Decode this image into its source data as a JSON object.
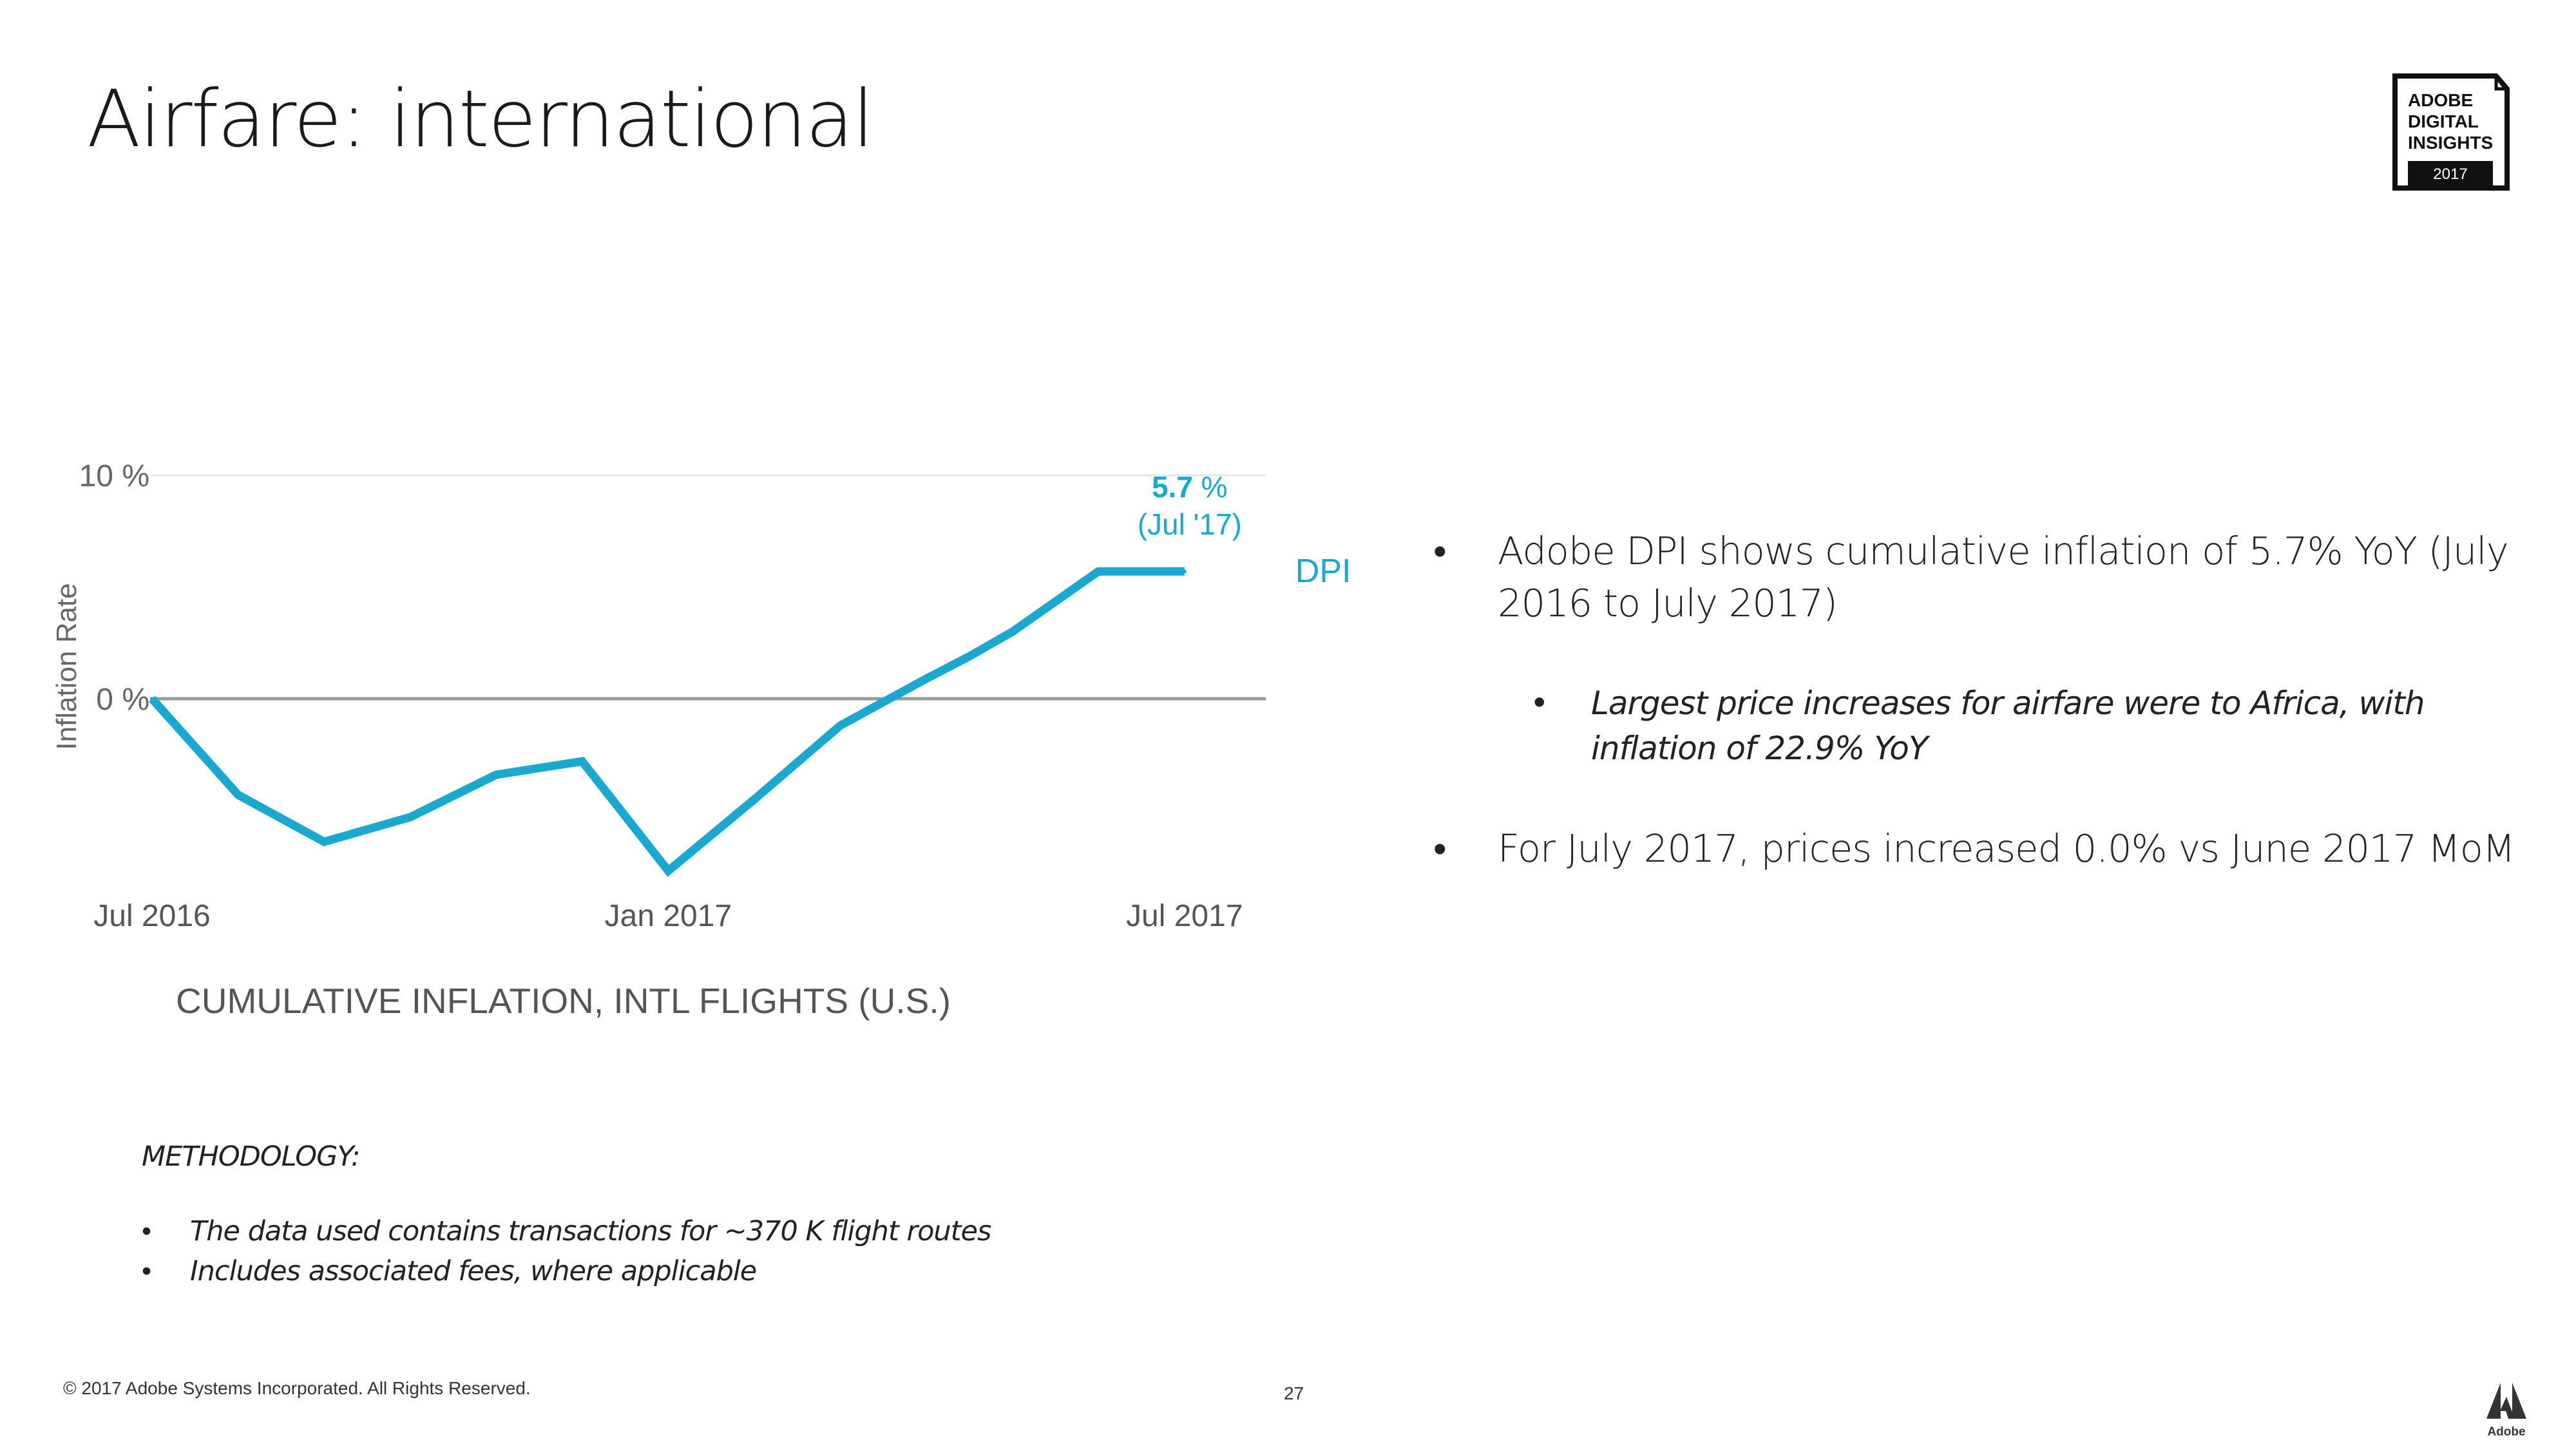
{
  "slide": {
    "title": "Airfare: international",
    "copyright": "© 2017 Adobe Systems Incorporated.  All Rights Reserved.",
    "page_number": "27"
  },
  "badge": {
    "line1": "ADOBE",
    "line2": "DIGITAL",
    "line3": "INSIGHTS",
    "year": "2017",
    "color": "#111111"
  },
  "adobe_logo": {
    "wordmark": "Adobe",
    "icon": "adobe-a-icon"
  },
  "bullets": {
    "b1": "Adobe DPI shows cumulative inflation of 5.7% YoY (July 2016 to July 2017)",
    "b1_sub": "Largest price increases for airfare were to Africa, with inflation of 22.9% YoY",
    "b2": "For July 2017, prices increased 0.0% vs June 2017 MoM",
    "bullet_char": "•"
  },
  "methodology": {
    "heading": "METHODOLOGY:",
    "items": [
      "The data used contains transactions for ~370 K flight routes",
      "Includes associated fees, where applicable"
    ]
  },
  "chart_data": {
    "type": "line",
    "title": "CUMULATIVE INFLATION, INTL FLIGHTS (U.S.)",
    "xlabel": "",
    "ylabel": "Inflation Rate",
    "ylim": [
      -10,
      10
    ],
    "y_ticks": [
      {
        "value": 10,
        "label": "10 %"
      },
      {
        "value": 0,
        "label": "0 %"
      }
    ],
    "x_ticks": [
      {
        "value": 0,
        "label": "Jul 2016"
      },
      {
        "value": 6,
        "label": "Jan 2017"
      },
      {
        "value": 12,
        "label": "Jul 2017"
      }
    ],
    "xlim": [
      0,
      12
    ],
    "grid": "horizontal",
    "series": [
      {
        "name": "DPI",
        "color": "#19a8cf",
        "x": [
          0,
          1,
          2,
          3,
          4,
          5,
          6,
          7,
          8,
          9,
          9.5,
          10,
          11,
          12
        ],
        "y": [
          0,
          -4.3,
          -6.4,
          -5.3,
          -3.4,
          -2.8,
          -7.7,
          -4.5,
          -1.2,
          0.9,
          1.9,
          3.0,
          5.7,
          5.7
        ]
      }
    ],
    "annotation": {
      "value_bold": "5.7",
      "value_unit": " %",
      "label": "(Jul '17)",
      "x": 12,
      "y": 5.7
    }
  }
}
